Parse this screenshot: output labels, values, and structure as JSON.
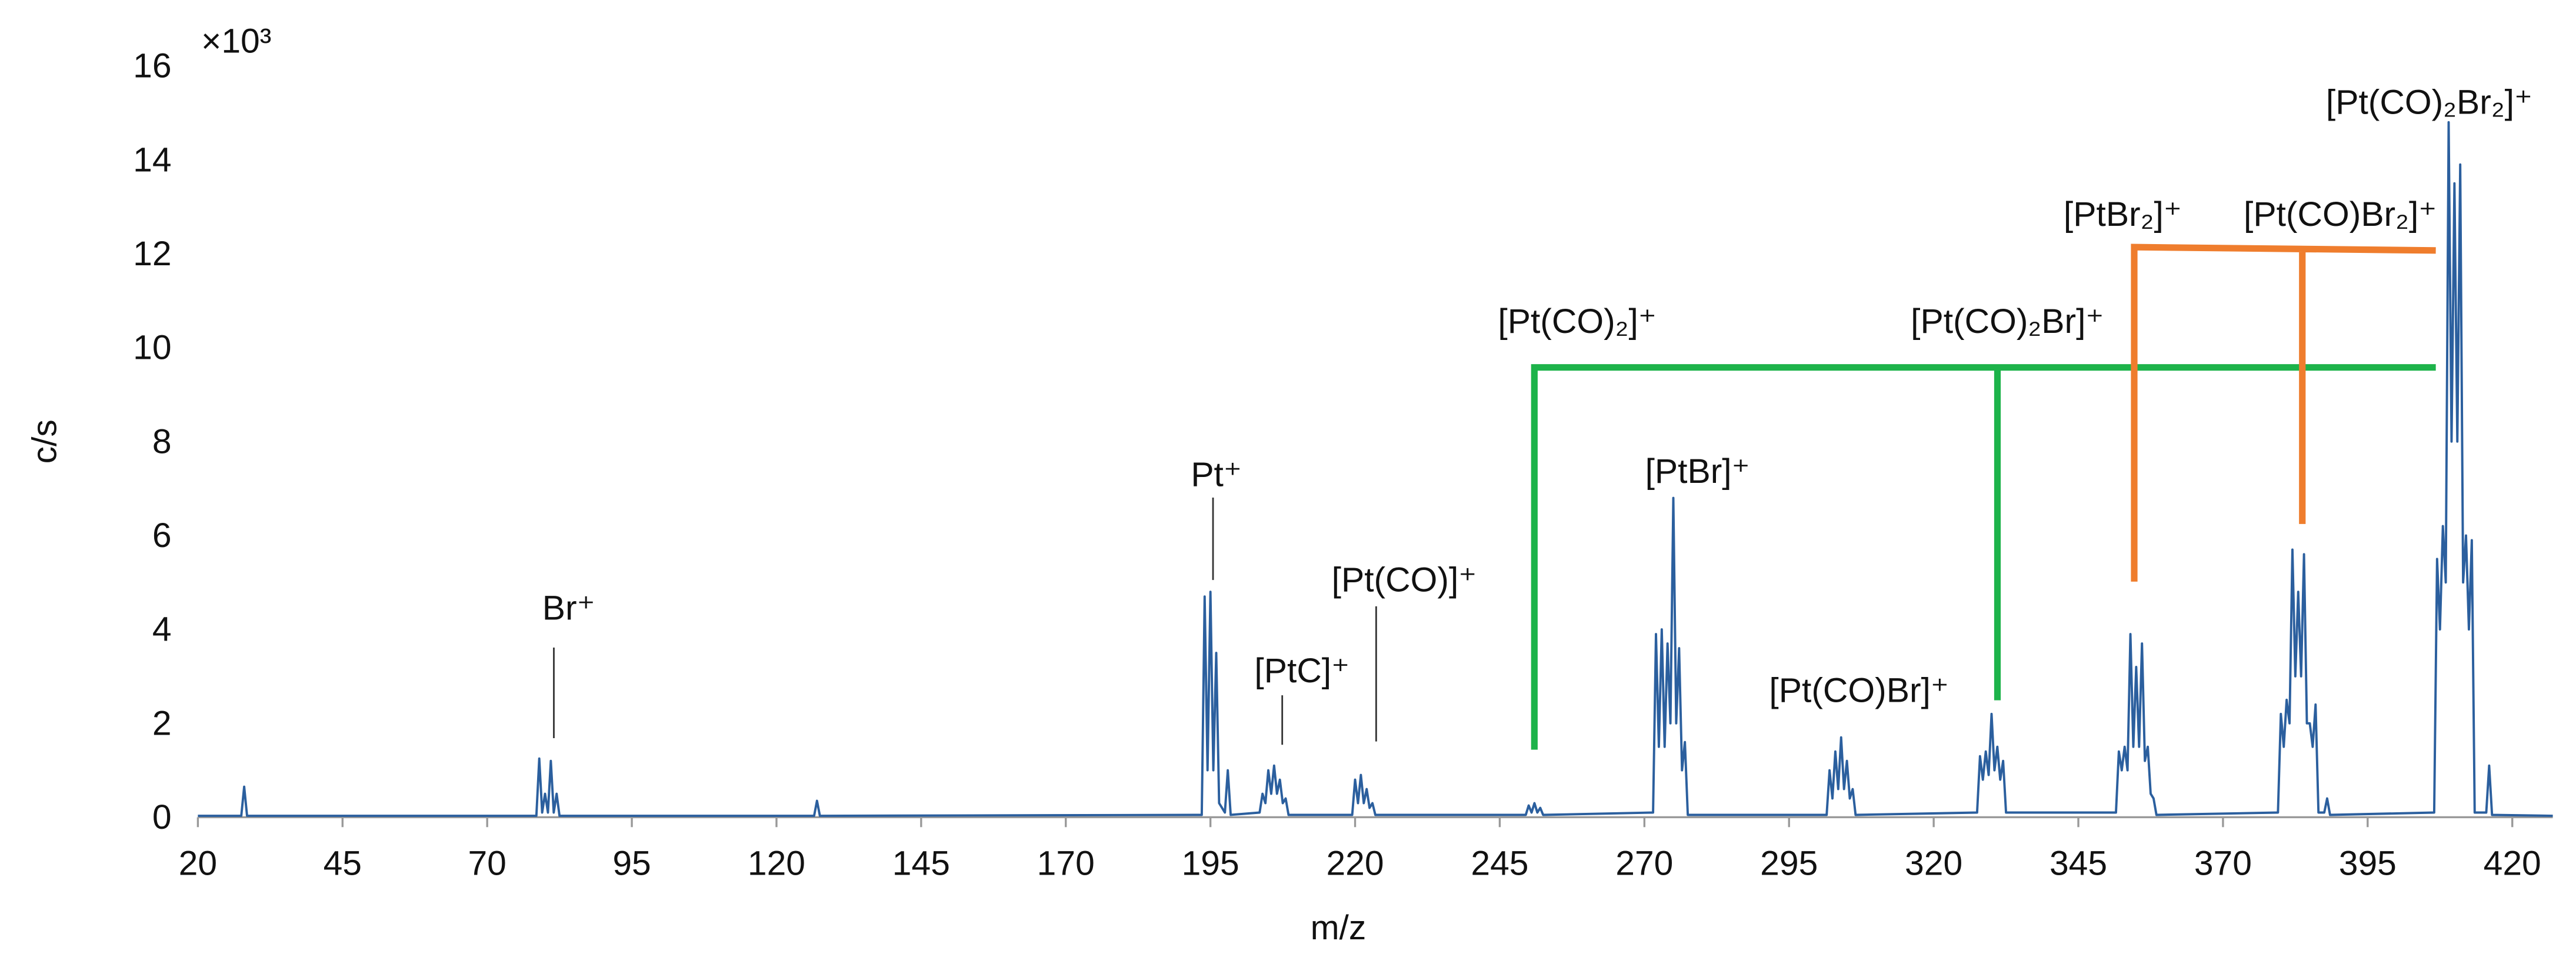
{
  "chart_data": {
    "type": "line",
    "x_label": "m/z",
    "y_label": "c/s",
    "y_multiplier": "×10³",
    "color": "#2b5f9e",
    "grid": false,
    "xlim": [
      20,
      427
    ],
    "xticks": [
      20,
      45,
      70,
      95,
      120,
      145,
      170,
      195,
      220,
      245,
      270,
      295,
      320,
      345,
      370,
      395,
      420
    ],
    "ylim": [
      0,
      16
    ],
    "yticks": [
      0,
      2,
      4,
      6,
      8,
      10,
      12,
      14,
      16
    ],
    "x": [
      20,
      27.5,
      28,
      28.5,
      78.5,
      79,
      79.5,
      80,
      80.5,
      81,
      81.5,
      82,
      82.5,
      126.5,
      127,
      127.5,
      193.5,
      194,
      194.5,
      195,
      195.5,
      196,
      196.5,
      197.5,
      198,
      198.5,
      203.5,
      204,
      204.5,
      205,
      205.5,
      206,
      206.5,
      207,
      207.5,
      208,
      208.5,
      219.5,
      220,
      220.5,
      221,
      221.5,
      222,
      222.5,
      223,
      223.5,
      249.5,
      250,
      250.5,
      251,
      251.5,
      252,
      252.5,
      271.5,
      272,
      272.5,
      273,
      273.5,
      274,
      274.5,
      275,
      275.5,
      276,
      276.5,
      277,
      277.5,
      301.5,
      302,
      302.5,
      303,
      303.5,
      304,
      304.5,
      305,
      305.5,
      306,
      306.5,
      327.5,
      328,
      328.5,
      329,
      329.5,
      330,
      330.5,
      331,
      331.5,
      332,
      332.5,
      351.5,
      352,
      352.5,
      353,
      353.5,
      354,
      354.5,
      355,
      355.5,
      356,
      356.5,
      357,
      357.5,
      358,
      358.5,
      379.5,
      380,
      380.5,
      381,
      381.5,
      382,
      382.5,
      383,
      383.5,
      384,
      384.5,
      385,
      385.5,
      386,
      386.5,
      387.5,
      388,
      388.5,
      406.5,
      407,
      407.5,
      408,
      408.5,
      409,
      409.5,
      410,
      410.5,
      411,
      411.5,
      412,
      412.5,
      413,
      413.5,
      415.5,
      416,
      416.5,
      427
    ],
    "values": [
      0.03,
      0.03,
      0.65,
      0.03,
      0.03,
      1.25,
      0.1,
      0.5,
      0.1,
      1.2,
      0.1,
      0.5,
      0.03,
      0.03,
      0.35,
      0.03,
      0.05,
      4.7,
      1.0,
      4.8,
      1.0,
      3.5,
      0.3,
      0.1,
      1.0,
      0.05,
      0.1,
      0.5,
      0.3,
      1.0,
      0.5,
      1.1,
      0.5,
      0.8,
      0.3,
      0.4,
      0.05,
      0.05,
      0.8,
      0.3,
      0.9,
      0.3,
      0.6,
      0.2,
      0.3,
      0.05,
      0.05,
      0.25,
      0.1,
      0.3,
      0.1,
      0.2,
      0.05,
      0.1,
      3.9,
      1.5,
      4.0,
      1.5,
      3.7,
      2.0,
      6.8,
      2.0,
      3.6,
      1.0,
      1.6,
      0.05,
      0.05,
      1.0,
      0.4,
      1.4,
      0.6,
      1.7,
      0.6,
      1.2,
      0.4,
      0.6,
      0.05,
      0.1,
      1.3,
      0.8,
      1.4,
      0.9,
      2.2,
      1.0,
      1.5,
      0.8,
      1.2,
      0.1,
      0.1,
      1.4,
      1.0,
      1.5,
      1.0,
      3.9,
      1.5,
      3.2,
      1.5,
      3.7,
      1.2,
      1.5,
      0.5,
      0.4,
      0.05,
      0.1,
      2.2,
      1.5,
      2.5,
      2.0,
      5.7,
      3.0,
      4.8,
      3.0,
      5.6,
      2.0,
      2.0,
      1.5,
      2.4,
      0.1,
      0.1,
      0.4,
      0.05,
      0.1,
      5.5,
      4.0,
      6.2,
      5.0,
      14.8,
      8.0,
      13.5,
      8.0,
      13.9,
      5.0,
      6.0,
      4.0,
      5.9,
      0.1,
      0.1,
      1.1,
      0.05,
      0.03
    ],
    "annotations": [
      {
        "text": "Br⁺"
      },
      {
        "text": "Pt⁺"
      },
      {
        "text": "[PtC]⁺"
      },
      {
        "text": "[Pt(CO)]⁺"
      },
      {
        "text": "[Pt(CO)₂]⁺"
      },
      {
        "text": "[PtBr]⁺"
      },
      {
        "text": "[Pt(CO)Br]⁺"
      },
      {
        "text": "[Pt(CO)₂Br]⁺"
      },
      {
        "text": "[PtBr₂]⁺"
      },
      {
        "text": "[Pt(CO)Br₂]⁺"
      },
      {
        "text": "[Pt(CO)₂Br₂]⁺"
      }
    ]
  }
}
